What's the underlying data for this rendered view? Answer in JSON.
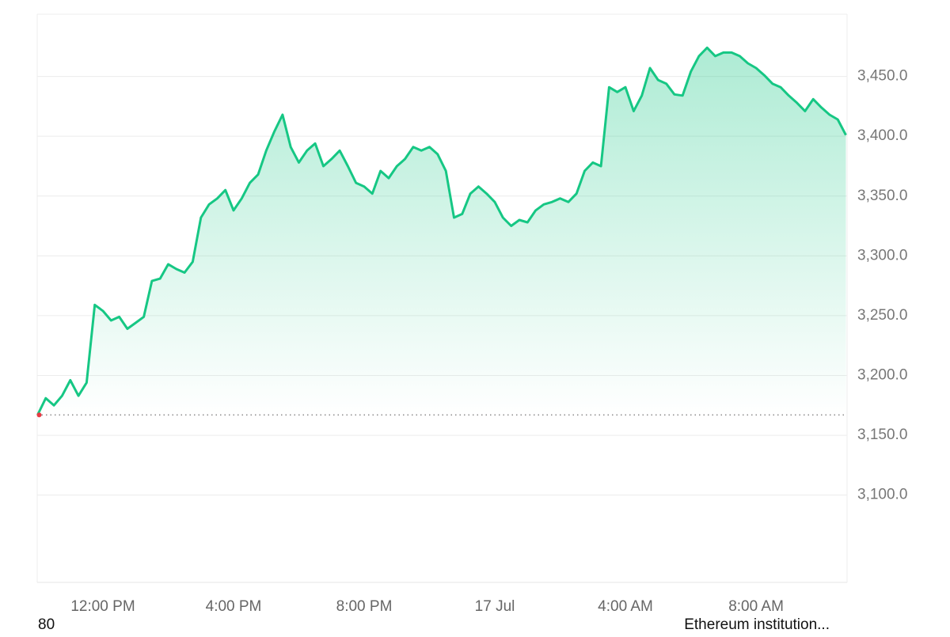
{
  "chart_data": {
    "type": "area-line",
    "values": [
      3167,
      3181,
      3175,
      3183,
      3196,
      3183,
      3194,
      3259,
      3254,
      3246,
      3249,
      3239,
      3244,
      3249,
      3279,
      3281,
      3293,
      3289,
      3286,
      3295,
      3332,
      3343,
      3348,
      3355,
      3338,
      3348,
      3361,
      3368,
      3388,
      3404,
      3418,
      3391,
      3378,
      3388,
      3394,
      3375,
      3381,
      3388,
      3375,
      3361,
      3358,
      3352,
      3371,
      3365,
      3375,
      3381,
      3391,
      3388,
      3391,
      3385,
      3371,
      3332,
      3335,
      3352,
      3358,
      3352,
      3345,
      3332,
      3325,
      3330,
      3328,
      3338,
      3343,
      3345,
      3348,
      3345,
      3352,
      3371,
      3378,
      3375,
      3441,
      3437,
      3441,
      3421,
      3434,
      3457,
      3447,
      3444,
      3435,
      3434,
      3454,
      3467,
      3474,
      3467,
      3470,
      3470,
      3467,
      3461,
      3457,
      3451,
      3444,
      3441,
      3434,
      3428,
      3421,
      3431,
      3424,
      3418,
      3414,
      3401
    ],
    "color": "#16c784",
    "baseline": 3167,
    "baseline_color": "#ea3943",
    "xlim": [
      0,
      99
    ],
    "xticks": [
      {
        "value": 8,
        "label": "12:00 PM"
      },
      {
        "value": 24,
        "label": "4:00 PM"
      },
      {
        "value": 40,
        "label": "8:00 PM"
      },
      {
        "value": 56,
        "label": "17 Jul"
      },
      {
        "value": 72,
        "label": "4:00 AM"
      },
      {
        "value": 88,
        "label": "8:00 AM"
      }
    ],
    "ylim": [
      3027,
      3502
    ],
    "yticks": [
      {
        "value": 3100,
        "label": "3,100.0"
      },
      {
        "value": 3150,
        "label": "3,150.0"
      },
      {
        "value": 3200,
        "label": "3,200.0"
      },
      {
        "value": 3250,
        "label": "3,250.0"
      },
      {
        "value": 3300,
        "label": "3,300.0"
      },
      {
        "value": 3350,
        "label": "3,350.0"
      },
      {
        "value": 3400,
        "label": "3,400.0"
      },
      {
        "value": 3450,
        "label": "3,450.0"
      }
    ],
    "grid": true
  },
  "page": {
    "left_text": "80",
    "right_text": "Ethereum institution..."
  }
}
